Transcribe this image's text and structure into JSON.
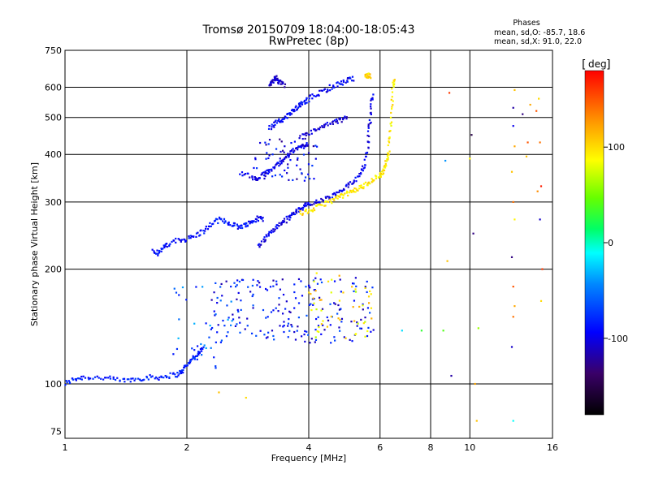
{
  "title_line1": "Tromsø 20150709 18:04:00-18:05:43",
  "title_line2": "RwPretec (8p)",
  "stats": {
    "heading": "Phases",
    "line1": "mean, sd,O: -85.7, 18.6",
    "line2": "mean, sd,X:  91.0, 22.0"
  },
  "colorbar": {
    "label": "deg",
    "min": -180,
    "max": 180,
    "ticks": [
      {
        "value": 100,
        "label": "100"
      },
      {
        "value": 0,
        "label": "0"
      },
      {
        "value": -100,
        "label": "-100"
      }
    ]
  },
  "chart_data": {
    "type": "scatter",
    "xlabel": "Frequency [MHz]",
    "ylabel": "Stationary phase Virtual Height [km]",
    "xscale": "log",
    "yscale": "log",
    "xlim": [
      1,
      16
    ],
    "ylim": [
      72,
      750
    ],
    "grid": true,
    "xticks": [
      {
        "value": 1,
        "label": "1"
      },
      {
        "value": 2,
        "label": "2"
      },
      {
        "value": 4,
        "label": "4"
      },
      {
        "value": 6,
        "label": "6"
      },
      {
        "value": 8,
        "label": "8"
      },
      {
        "value": 10,
        "label": "10"
      },
      {
        "value": 16,
        "label": "16"
      }
    ],
    "xgrid": [
      2,
      4,
      6,
      8,
      10
    ],
    "yticks": [
      {
        "value": 75,
        "label": "75"
      },
      {
        "value": 100,
        "label": "100"
      },
      {
        "value": 200,
        "label": "200"
      },
      {
        "value": 300,
        "label": "300"
      },
      {
        "value": 400,
        "label": "400"
      },
      {
        "value": 500,
        "label": "500"
      },
      {
        "value": 600,
        "label": "600"
      },
      {
        "value": 750,
        "label": "750"
      }
    ],
    "ygrid": [
      100,
      200,
      300,
      400,
      500,
      600
    ],
    "traces": [
      {
        "phase": -85,
        "points": [
          [
            1.0,
            100
          ],
          [
            1.05,
            103
          ],
          [
            1.1,
            104
          ],
          [
            1.2,
            104
          ],
          [
            1.3,
            103
          ],
          [
            1.4,
            102
          ],
          [
            1.5,
            103
          ],
          [
            1.6,
            104
          ],
          [
            1.7,
            104
          ],
          [
            1.8,
            105
          ],
          [
            1.9,
            106
          ],
          [
            1.95,
            108
          ],
          [
            2.0,
            112
          ],
          [
            2.05,
            116
          ],
          [
            2.1,
            118
          ],
          [
            2.15,
            121
          ],
          [
            2.2,
            124
          ]
        ]
      },
      {
        "phase": -90,
        "points": [
          [
            1.65,
            225
          ],
          [
            1.7,
            220
          ],
          [
            1.75,
            228
          ],
          [
            1.8,
            232
          ],
          [
            1.9,
            238
          ],
          [
            2.0,
            240
          ],
          [
            2.1,
            245
          ],
          [
            2.2,
            252
          ],
          [
            2.3,
            262
          ],
          [
            2.4,
            270
          ],
          [
            2.5,
            266
          ],
          [
            2.6,
            262
          ],
          [
            2.7,
            258
          ],
          [
            2.8,
            262
          ],
          [
            2.9,
            266
          ],
          [
            3.0,
            272
          ],
          [
            3.1,
            270
          ]
        ]
      },
      {
        "phase": -100,
        "points": [
          [
            3.0,
            230
          ],
          [
            3.1,
            238
          ],
          [
            3.2,
            248
          ],
          [
            3.3,
            256
          ],
          [
            3.4,
            262
          ],
          [
            3.5,
            268
          ],
          [
            3.6,
            275
          ],
          [
            3.7,
            282
          ],
          [
            3.8,
            288
          ],
          [
            3.9,
            292
          ],
          [
            4.0,
            296
          ],
          [
            4.2,
            300
          ],
          [
            4.4,
            305
          ],
          [
            4.6,
            312
          ],
          [
            4.8,
            320
          ],
          [
            5.0,
            330
          ],
          [
            5.2,
            342
          ],
          [
            5.4,
            360
          ],
          [
            5.5,
            380
          ],
          [
            5.6,
            420
          ],
          [
            5.65,
            470
          ],
          [
            5.7,
            530
          ],
          [
            5.75,
            580
          ]
        ]
      },
      {
        "phase": 95,
        "points": [
          [
            3.8,
            280
          ],
          [
            4.0,
            284
          ],
          [
            4.2,
            290
          ],
          [
            4.4,
            298
          ],
          [
            4.6,
            304
          ],
          [
            4.8,
            310
          ],
          [
            5.0,
            316
          ],
          [
            5.2,
            322
          ],
          [
            5.4,
            328
          ],
          [
            5.6,
            336
          ],
          [
            5.8,
            345
          ],
          [
            6.0,
            352
          ],
          [
            6.1,
            362
          ],
          [
            6.2,
            378
          ],
          [
            6.3,
            400
          ],
          [
            6.35,
            450
          ],
          [
            6.4,
            520
          ],
          [
            6.45,
            600
          ],
          [
            6.5,
            640
          ]
        ]
      },
      {
        "phase": -100,
        "points": [
          [
            2.7,
            360
          ],
          [
            2.9,
            348
          ],
          [
            3.0,
            345
          ],
          [
            3.1,
            355
          ],
          [
            3.2,
            362
          ],
          [
            3.3,
            372
          ],
          [
            3.4,
            382
          ],
          [
            3.5,
            392
          ],
          [
            3.6,
            402
          ],
          [
            3.7,
            412
          ],
          [
            3.8,
            418
          ],
          [
            3.9,
            422
          ],
          [
            4.0,
            430
          ]
        ]
      },
      {
        "phase": -95,
        "points": [
          [
            3.2,
            470
          ],
          [
            3.3,
            480
          ],
          [
            3.4,
            490
          ],
          [
            3.5,
            500
          ],
          [
            3.6,
            512
          ],
          [
            3.7,
            525
          ],
          [
            3.8,
            538
          ],
          [
            3.9,
            548
          ],
          [
            4.0,
            560
          ],
          [
            4.2,
            575
          ],
          [
            4.4,
            590
          ],
          [
            4.6,
            605
          ],
          [
            4.8,
            615
          ],
          [
            5.0,
            625
          ],
          [
            5.2,
            632
          ]
        ]
      },
      {
        "phase": -110,
        "points": [
          [
            3.2,
            600
          ],
          [
            3.25,
            620
          ],
          [
            3.3,
            640
          ],
          [
            3.35,
            625
          ],
          [
            3.4,
            615
          ],
          [
            3.5,
            605
          ]
        ]
      },
      {
        "phase": -105,
        "points": [
          [
            3.8,
            440
          ],
          [
            4.0,
            455
          ],
          [
            4.2,
            465
          ],
          [
            4.4,
            475
          ],
          [
            4.6,
            485
          ],
          [
            4.8,
            492
          ],
          [
            5.0,
            500
          ]
        ]
      },
      {
        "phase": 100,
        "points": [
          [
            5.5,
            640
          ],
          [
            5.6,
            645
          ],
          [
            5.7,
            642
          ]
        ]
      }
    ],
    "scatter_clouds": [
      {
        "phase": -90,
        "fmin": 2.3,
        "fmax": 5.8,
        "hmin": 128,
        "hmax": 190,
        "count": 200
      },
      {
        "phase": 90,
        "fmin": 4.0,
        "fmax": 5.8,
        "hmin": 130,
        "hmax": 200,
        "count": 50
      },
      {
        "phase": -60,
        "fmin": 1.8,
        "fmax": 2.6,
        "hmin": 110,
        "hmax": 180,
        "count": 40
      },
      {
        "phase": -100,
        "fmin": 2.9,
        "fmax": 4.2,
        "hmin": 340,
        "hmax": 440,
        "count": 60
      }
    ],
    "isolated_points": [
      {
        "f": 2.4,
        "h": 95,
        "phase": 110
      },
      {
        "f": 2.8,
        "h": 92,
        "phase": 100
      },
      {
        "f": 6.8,
        "h": 138,
        "phase": -20
      },
      {
        "f": 7.6,
        "h": 138,
        "phase": 30
      },
      {
        "f": 8.8,
        "h": 210,
        "phase": 110
      },
      {
        "f": 8.9,
        "h": 580,
        "phase": 160
      },
      {
        "f": 8.7,
        "h": 385,
        "phase": -40
      },
      {
        "f": 9.0,
        "h": 105,
        "phase": -120
      },
      {
        "f": 8.6,
        "h": 138,
        "phase": 40
      },
      {
        "f": 10.2,
        "h": 248,
        "phase": -130
      },
      {
        "f": 10.1,
        "h": 450,
        "phase": -150
      },
      {
        "f": 10.3,
        "h": 100,
        "phase": 120
      },
      {
        "f": 10.4,
        "h": 80,
        "phase": 110
      },
      {
        "f": 10.0,
        "h": 390,
        "phase": 90
      },
      {
        "f": 10.5,
        "h": 140,
        "phase": 60
      },
      {
        "f": 12.8,
        "h": 530,
        "phase": -120
      },
      {
        "f": 12.8,
        "h": 475,
        "phase": -100
      },
      {
        "f": 12.9,
        "h": 420,
        "phase": 120
      },
      {
        "f": 12.7,
        "h": 360,
        "phase": 110
      },
      {
        "f": 12.8,
        "h": 300,
        "phase": 140
      },
      {
        "f": 12.9,
        "h": 270,
        "phase": 90
      },
      {
        "f": 12.7,
        "h": 215,
        "phase": -130
      },
      {
        "f": 12.8,
        "h": 180,
        "phase": 150
      },
      {
        "f": 12.9,
        "h": 160,
        "phase": 120
      },
      {
        "f": 12.8,
        "h": 150,
        "phase": 140
      },
      {
        "f": 12.7,
        "h": 125,
        "phase": -110
      },
      {
        "f": 12.8,
        "h": 80,
        "phase": -10
      },
      {
        "f": 12.9,
        "h": 590,
        "phase": 110
      },
      {
        "f": 14.8,
        "h": 560,
        "phase": 100
      },
      {
        "f": 14.6,
        "h": 520,
        "phase": 150
      },
      {
        "f": 14.9,
        "h": 430,
        "phase": 140
      },
      {
        "f": 15.0,
        "h": 330,
        "phase": 170
      },
      {
        "f": 14.7,
        "h": 320,
        "phase": 130
      },
      {
        "f": 14.9,
        "h": 270,
        "phase": -110
      },
      {
        "f": 15.1,
        "h": 200,
        "phase": 160
      },
      {
        "f": 15.0,
        "h": 165,
        "phase": 100
      },
      {
        "f": 13.8,
        "h": 395,
        "phase": 110
      },
      {
        "f": 13.9,
        "h": 430,
        "phase": 150
      },
      {
        "f": 14.1,
        "h": 540,
        "phase": 120
      },
      {
        "f": 13.5,
        "h": 510,
        "phase": -130
      }
    ]
  }
}
